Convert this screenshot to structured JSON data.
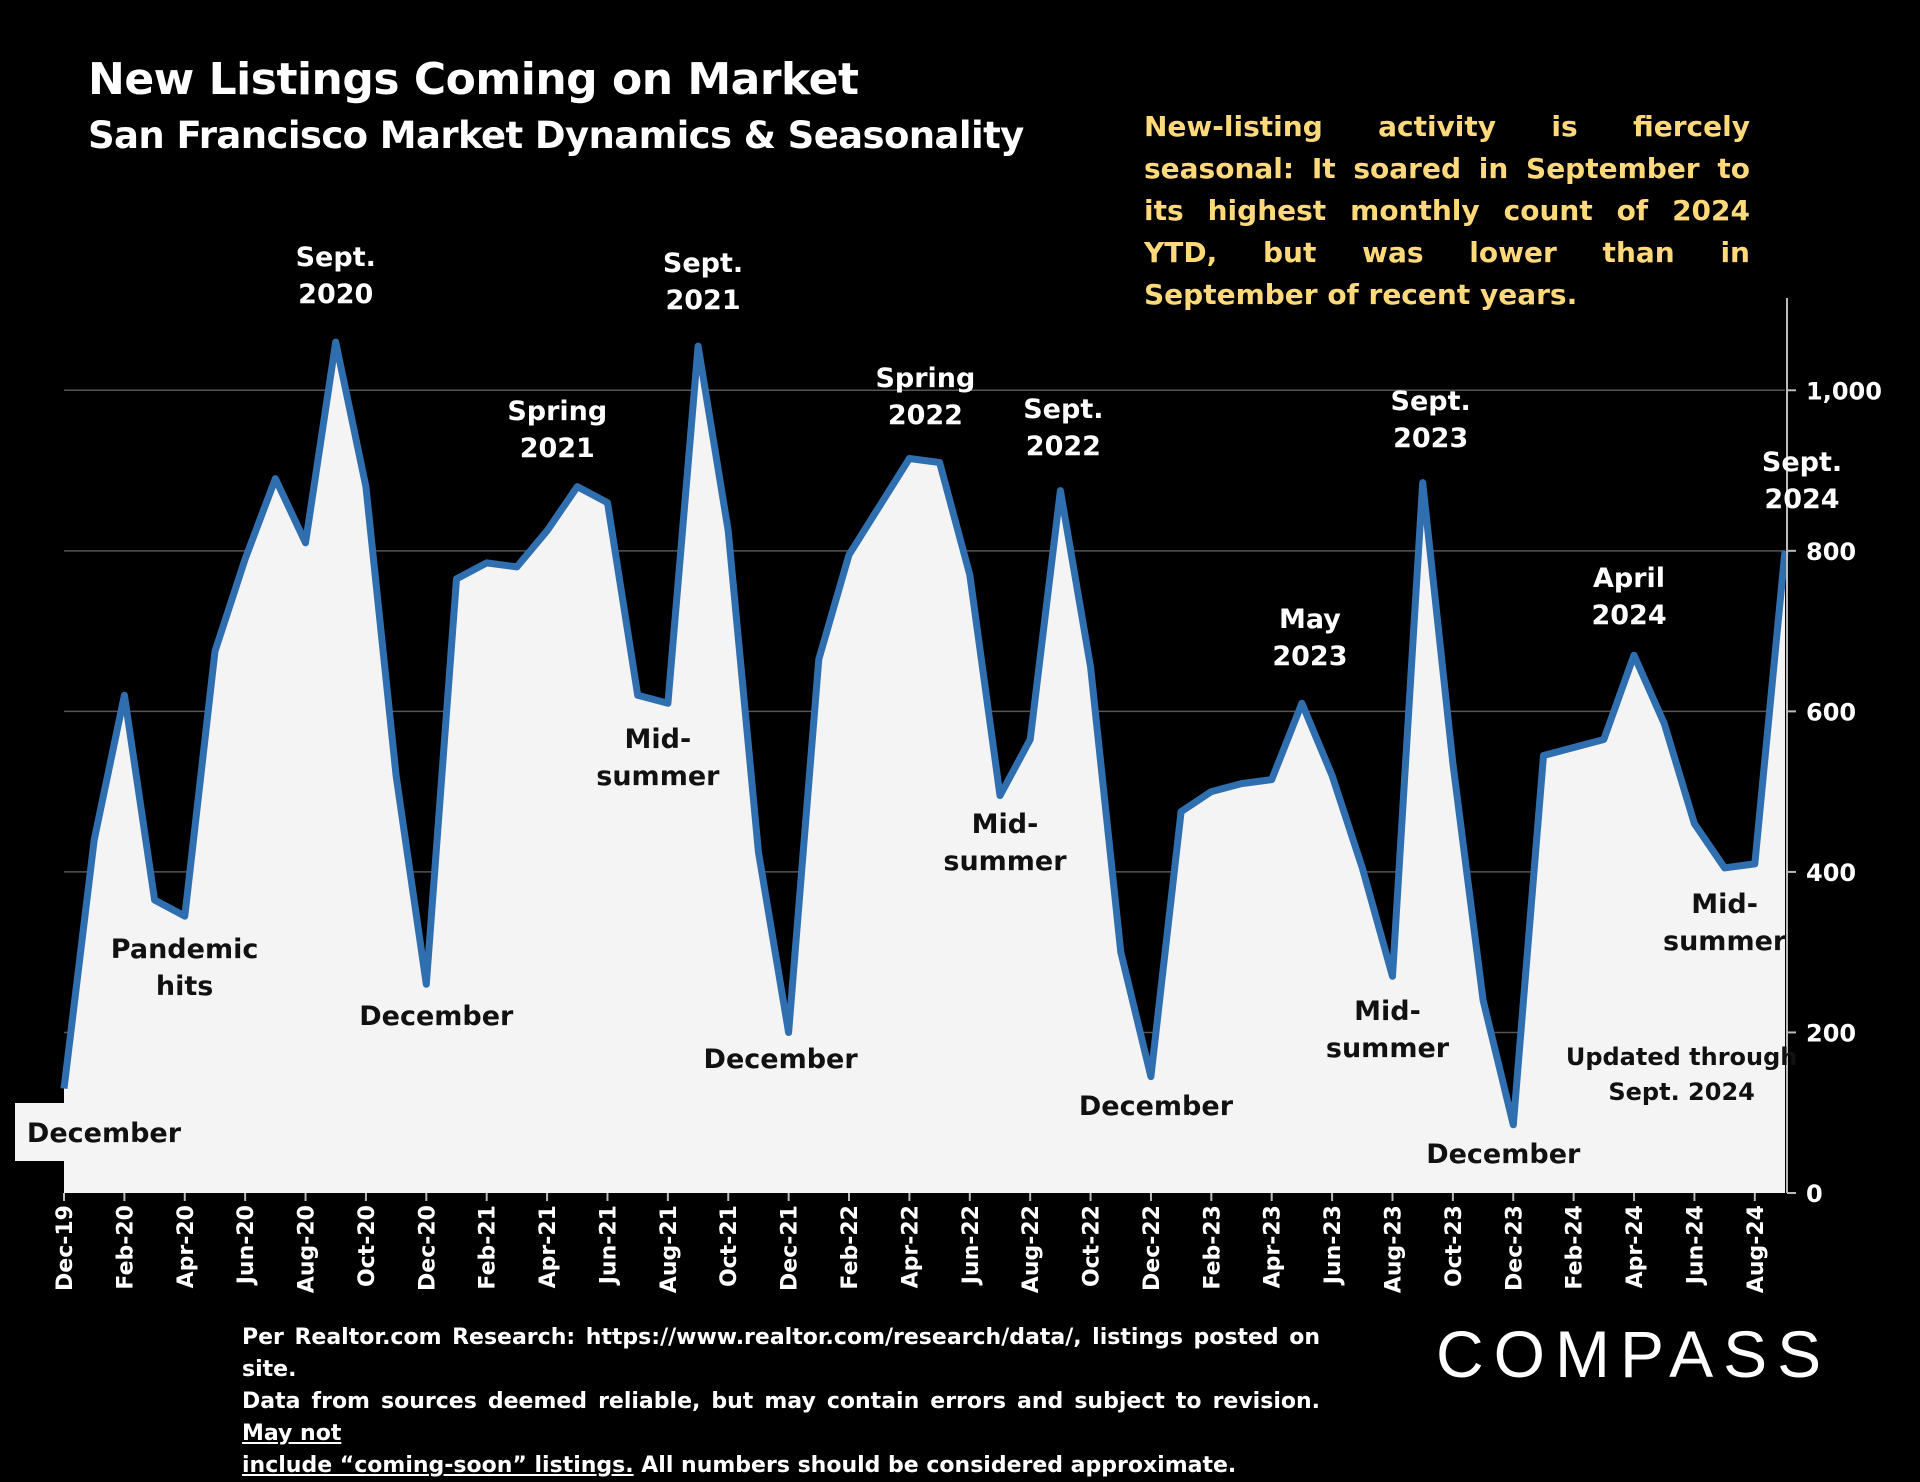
{
  "header": {
    "title": "New Listings Coming on Market",
    "subtitle": "San Francisco Market Dynamics & Seasonality"
  },
  "note": "New-listing activity is fiercely seasonal:  It soared in September to its highest monthly count of 2024 YTD, but was lower than in September of recent years.",
  "footer": {
    "line1": "Per Realtor.com Research:   https://www.realtor.com/research/data/, listings posted on site.",
    "line2a": "Data from sources deemed reliable, but may contain errors and subject to revision.",
    "line2b": "May not",
    "line3a": "include “coming-soon” listings.",
    "line3b": "All numbers should be considered approximate."
  },
  "logo": "COMPASS",
  "colors": {
    "line": "#2f6fb0",
    "fill": "#f4f4f4",
    "grid": "#555555",
    "note": "#ffd97a"
  },
  "chart_data": {
    "type": "area",
    "x": [
      "Dec-19",
      "Jan-20",
      "Feb-20",
      "Mar-20",
      "Apr-20",
      "May-20",
      "Jun-20",
      "Jul-20",
      "Aug-20",
      "Sep-20",
      "Oct-20",
      "Nov-20",
      "Dec-20",
      "Jan-21",
      "Feb-21",
      "Mar-21",
      "Apr-21",
      "May-21",
      "Jun-21",
      "Jul-21",
      "Aug-21",
      "Sep-21",
      "Oct-21",
      "Nov-21",
      "Dec-21",
      "Jan-22",
      "Feb-22",
      "Mar-22",
      "Apr-22",
      "May-22",
      "Jun-22",
      "Jul-22",
      "Aug-22",
      "Sep-22",
      "Oct-22",
      "Nov-22",
      "Dec-22",
      "Jan-23",
      "Feb-23",
      "Mar-23",
      "Apr-23",
      "May-23",
      "Jun-23",
      "Jul-23",
      "Aug-23",
      "Sep-23",
      "Oct-23",
      "Nov-23",
      "Dec-23",
      "Jan-24",
      "Feb-24",
      "Mar-24",
      "Apr-24",
      "May-24",
      "Jun-24",
      "Jul-24",
      "Aug-24",
      "Sep-24"
    ],
    "tick_labels": [
      "Dec-19",
      "Feb-20",
      "Apr-20",
      "Jun-20",
      "Aug-20",
      "Oct-20",
      "Dec-20",
      "Feb-21",
      "Apr-21",
      "Jun-21",
      "Aug-21",
      "Oct-21",
      "Dec-21",
      "Feb-22",
      "Apr-22",
      "Jun-22",
      "Aug-22",
      "Oct-22",
      "Dec-22",
      "Feb-23",
      "Apr-23",
      "Jun-23",
      "Aug-23",
      "Oct-23",
      "Dec-23",
      "Feb-24",
      "Apr-24",
      "Jun-24",
      "Aug-24"
    ],
    "series": [
      {
        "values": [
          130,
          440,
          620,
          365,
          345,
          675,
          790,
          890,
          810,
          1060,
          880,
          520,
          260,
          765,
          785,
          780,
          825,
          880,
          860,
          620,
          610,
          1055,
          825,
          425,
          200,
          665,
          795,
          855,
          915,
          910,
          770,
          495,
          565,
          875,
          655,
          300,
          145,
          475,
          500,
          510,
          515,
          610,
          520,
          405,
          270,
          885,
          535,
          240,
          85,
          545,
          555,
          565,
          670,
          585,
          460,
          405,
          410,
          800
        ]
      }
    ],
    "ylim": [
      0,
      1100
    ],
    "yticks": [
      0,
      200,
      400,
      600,
      800,
      1000
    ],
    "ytick_labels": [
      "0",
      "200",
      "400",
      "600",
      "800",
      "1,000"
    ],
    "grid": true,
    "annotations": [
      {
        "x": "Dec-19",
        "lines": [
          "December"
        ]
      },
      {
        "x": "Mar-20",
        "lines": [
          "Pandemic",
          "hits"
        ]
      },
      {
        "x": "Sep-20",
        "lines": [
          "Sept.",
          "2020"
        ]
      },
      {
        "x": "Dec-20",
        "lines": [
          "December"
        ]
      },
      {
        "x": "May-21",
        "lines": [
          "Spring",
          "2021"
        ]
      },
      {
        "x": "Aug-21",
        "lines": [
          "Mid-",
          "summer"
        ]
      },
      {
        "x": "Sep-21",
        "lines": [
          "Sept.",
          "2021"
        ]
      },
      {
        "x": "Dec-21",
        "lines": [
          "December"
        ]
      },
      {
        "x": "Apr-22",
        "lines": [
          "Spring",
          "2022"
        ]
      },
      {
        "x": "Jul-22",
        "lines": [
          "Mid-",
          "summer"
        ]
      },
      {
        "x": "Sep-22",
        "lines": [
          "Sept.",
          "2022"
        ]
      },
      {
        "x": "Dec-22",
        "lines": [
          "December"
        ]
      },
      {
        "x": "May-23",
        "lines": [
          "May",
          "2023"
        ]
      },
      {
        "x": "Aug-23",
        "lines": [
          "Mid-",
          "summer"
        ]
      },
      {
        "x": "Sep-23",
        "lines": [
          "Sept.",
          "2023"
        ]
      },
      {
        "x": "Dec-23",
        "lines": [
          "December"
        ]
      },
      {
        "x": "Apr-24",
        "lines": [
          "April",
          "2024"
        ]
      },
      {
        "x": "Jul-24",
        "lines": [
          "Mid-",
          "summer"
        ]
      },
      {
        "x": "Sep-24",
        "lines": [
          "Sept.",
          "2024"
        ]
      },
      {
        "x": "Jul-24",
        "lines": [
          "Updated through",
          "Sept. 2024"
        ]
      }
    ]
  }
}
